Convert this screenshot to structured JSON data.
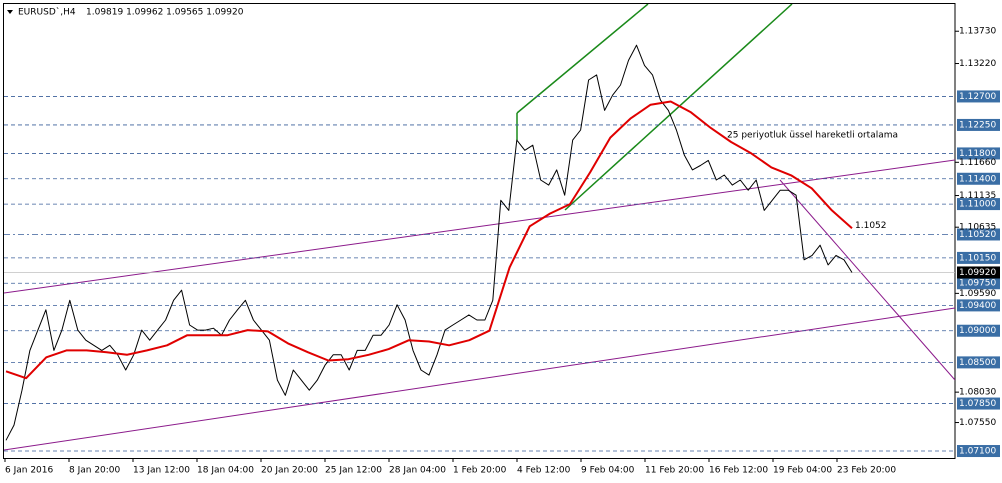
{
  "chart_data": {
    "type": "line",
    "title": "EURUSD`,H4",
    "subtitle": "1.09819 1.09962 1.09565 1.09920",
    "ylim": [
      1.0699,
      1.1416
    ],
    "yticks": [
      {
        "value": 1.1373,
        "label": "1.13730"
      },
      {
        "value": 1.1322,
        "label": "1.13220"
      },
      {
        "value": 1.1166,
        "label": "1.11660"
      },
      {
        "value": 1.11135,
        "label": "1.11135"
      },
      {
        "value": 1.10635,
        "label": "1.10635"
      },
      {
        "value": 1.0959,
        "label": "1.09590"
      },
      {
        "value": 1.0803,
        "label": "1.08030"
      },
      {
        "value": 1.0755,
        "label": "1.07550"
      }
    ],
    "levels": [
      {
        "value": 1.127,
        "label": "1.12700"
      },
      {
        "value": 1.1225,
        "label": "1.12250"
      },
      {
        "value": 1.118,
        "label": "1.11800"
      },
      {
        "value": 1.114,
        "label": "1.11400"
      },
      {
        "value": 1.11,
        "label": "1.11000"
      },
      {
        "value": 1.1052,
        "label": "1.10520"
      },
      {
        "value": 1.1015,
        "label": "1.10150"
      },
      {
        "value": 1.0975,
        "label": "1.09750"
      },
      {
        "value": 1.094,
        "label": "1.09400"
      },
      {
        "value": 1.09,
        "label": "1.09000"
      },
      {
        "value": 1.085,
        "label": "1.08500"
      },
      {
        "value": 1.0785,
        "label": "1.07850"
      },
      {
        "value": 1.071,
        "label": "1.07100"
      }
    ],
    "current_price": {
      "value": 1.0992,
      "label": "1.09920"
    },
    "xtick_labels": [
      "6 Jan 2016",
      "8 Jan 20:00",
      "13 Jan 12:00",
      "18 Jan 04:00",
      "20 Jan 20:00",
      "25 Jan 12:00",
      "28 Jan 04:00",
      "1 Feb 20:00",
      "4 Feb 12:00",
      "9 Feb 04:00",
      "11 Feb 20:00",
      "16 Feb 12:00",
      "19 Feb 04:00",
      "23 Feb 20:00"
    ],
    "series": [
      {
        "name": "EURUSD",
        "color": "#000000",
        "values": [
          1.0727,
          1.0751,
          1.0806,
          1.0869,
          1.0901,
          1.0933,
          1.0869,
          1.0901,
          1.0948,
          1.0901,
          1.0885,
          1.0877,
          1.0869,
          1.0877,
          1.0862,
          1.0838,
          1.0862,
          1.0901,
          1.0885,
          1.0901,
          1.0917,
          1.0948,
          1.0964,
          1.0909,
          1.0901,
          1.0901,
          1.0904,
          1.0893,
          1.0917,
          1.0933,
          1.0948,
          1.0917,
          1.0901,
          1.0885,
          1.0822,
          1.0798,
          1.0838,
          1.0822,
          1.0806,
          1.0822,
          1.0846,
          1.0862,
          1.0862,
          1.0838,
          1.0869,
          1.0869,
          1.0893,
          1.0893,
          1.0909,
          1.0941,
          1.0917,
          1.0869,
          1.0838,
          1.083,
          1.0862,
          1.0901,
          1.0909,
          1.0917,
          1.0925,
          1.0917,
          1.0917,
          1.0948,
          1.1106,
          1.109,
          1.1201,
          1.1185,
          1.1193,
          1.1138,
          1.113,
          1.1154,
          1.1114,
          1.1201,
          1.1217,
          1.1296,
          1.1304,
          1.1248,
          1.1272,
          1.1288,
          1.1327,
          1.1351,
          1.1319,
          1.1304,
          1.1264,
          1.1248,
          1.1217,
          1.1177,
          1.1154,
          1.1161,
          1.1169,
          1.1138,
          1.1146,
          1.113,
          1.1138,
          1.1122,
          1.1138,
          1.109,
          1.1106,
          1.1122,
          1.1122,
          1.1114,
          1.1012,
          1.1019,
          1.1035,
          1.1004,
          1.1019,
          1.1012,
          1.0992
        ]
      },
      {
        "name": "25 periyotluk üssel hareketli ortalama",
        "color": "#e00000",
        "values": [
          1.0836,
          1.0825,
          1.0858,
          1.0869,
          1.0869,
          1.0866,
          1.0862,
          1.0869,
          1.0877,
          1.0893,
          1.0893,
          1.0893,
          1.0901,
          1.0899,
          1.088,
          1.0866,
          1.0853,
          1.0855,
          1.0862,
          1.0871,
          1.0885,
          1.0883,
          1.0877,
          1.0885,
          1.09,
          1.1,
          1.1065,
          1.1085,
          1.11,
          1.115,
          1.1205,
          1.1235,
          1.1257,
          1.1262,
          1.1245,
          1.122,
          1.1198,
          1.118,
          1.1158,
          1.1145,
          1.1125,
          1.109,
          1.1062
        ]
      }
    ],
    "annotations": [
      1.1052
    ]
  }
}
